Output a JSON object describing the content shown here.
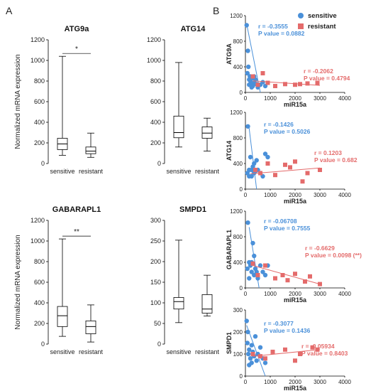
{
  "panels": {
    "a": "A",
    "b": "B"
  },
  "colors": {
    "sensitive": "#4a90d9",
    "resistant": "#e46b6b",
    "box": "#000000"
  },
  "box_ylabel": "Normalized mRNA expression",
  "scatter_xlabel": "miR15a",
  "legend": [
    {
      "label": "sensitive",
      "color": "#4a90d9",
      "marker": "circle"
    },
    {
      "label": "resistant",
      "color": "#e46b6b",
      "marker": "square"
    }
  ],
  "chart_data": [
    {
      "type": "box",
      "title": "ATG9a",
      "ylabel": "Normalized mRNA expression",
      "categories": [
        "sensitive",
        "resistant"
      ],
      "ylim": [
        0,
        1200
      ],
      "yticks": [
        0,
        200,
        400,
        600,
        800,
        1000,
        1200
      ],
      "boxes": [
        {
          "min": 80,
          "q1": 135,
          "median": 190,
          "q3": 245,
          "max": 1040
        },
        {
          "min": 60,
          "q1": 95,
          "median": 120,
          "q3": 160,
          "max": 295
        }
      ],
      "annotation": "*"
    },
    {
      "type": "box",
      "title": "ATG14",
      "ylabel": "",
      "categories": [
        "sensitive",
        "resistant"
      ],
      "ylim": [
        0,
        1200
      ],
      "yticks": [
        0,
        200,
        400,
        600,
        800,
        1000,
        1200
      ],
      "boxes": [
        {
          "min": 160,
          "q1": 250,
          "median": 300,
          "q3": 460,
          "max": 980
        },
        {
          "min": 120,
          "q1": 245,
          "median": 295,
          "q3": 355,
          "max": 440
        }
      ],
      "annotation": ""
    },
    {
      "type": "box",
      "title": "GABARAPL1",
      "ylabel": "Normalized mRNA expression",
      "categories": [
        "sensitive",
        "resistant"
      ],
      "ylim": [
        0,
        1200
      ],
      "yticks": [
        0,
        200,
        400,
        600,
        800,
        1000,
        1200
      ],
      "boxes": [
        {
          "min": 75,
          "q1": 170,
          "median": 275,
          "q3": 365,
          "max": 1020
        },
        {
          "min": 20,
          "q1": 100,
          "median": 170,
          "q3": 225,
          "max": 380
        }
      ],
      "annotation": "**"
    },
    {
      "type": "box",
      "title": "SMPD1",
      "ylabel": "",
      "categories": [
        "sensitive",
        "resistant"
      ],
      "ylim": [
        0,
        300
      ],
      "yticks": [
        0,
        50,
        100,
        150,
        200,
        250,
        300
      ],
      "boxes": [
        {
          "min": 52,
          "q1": 85,
          "median": 103,
          "q3": 113,
          "max": 252
        },
        {
          "min": 68,
          "q1": 75,
          "median": 85,
          "q3": 120,
          "max": 167
        }
      ],
      "annotation": ""
    },
    {
      "type": "scatter",
      "ylabel": "ATG9A",
      "xlabel": "miR15a",
      "xlim": [
        0,
        4000
      ],
      "ylim": [
        0,
        1200
      ],
      "xticks": [
        0,
        1000,
        2000,
        3000,
        4000
      ],
      "yticks": [
        0,
        400,
        800,
        1200
      ],
      "series": [
        {
          "name": "sensitive",
          "x": [
            50,
            80,
            100,
            120,
            150,
            180,
            200,
            230,
            260,
            300,
            350,
            400,
            450,
            500,
            600,
            700,
            800,
            150,
            250,
            350
          ],
          "y": [
            1050,
            300,
            650,
            400,
            200,
            250,
            180,
            120,
            220,
            100,
            150,
            200,
            130,
            80,
            120,
            160,
            100,
            120,
            80,
            250
          ],
          "stat_r": "r = -0.3555",
          "stat_p": "P value = 0.0882",
          "fit": [
            [
              60,
              1050
            ],
            [
              600,
              0
            ]
          ]
        },
        {
          "name": "resistant",
          "x": [
            300,
            500,
            700,
            900,
            1200,
            1600,
            2000,
            2200,
            2500,
            2900
          ],
          "y": [
            250,
            120,
            300,
            150,
            100,
            130,
            120,
            130,
            140,
            150
          ],
          "stat_r": "r = -0.2062",
          "stat_p": "P value = 0.4794",
          "fit": [
            [
              300,
              180
            ],
            [
              3000,
              110
            ]
          ]
        }
      ]
    },
    {
      "type": "scatter",
      "ylabel": "ATG14",
      "xlabel": "miR15a",
      "xlim": [
        0,
        4000
      ],
      "ylim": [
        0,
        1200
      ],
      "xticks": [
        0,
        1000,
        2000,
        3000,
        4000
      ],
      "yticks": [
        0,
        400,
        800,
        1200
      ],
      "series": [
        {
          "name": "sensitive",
          "x": [
            80,
            100,
            150,
            200,
            250,
            300,
            350,
            400,
            450,
            500,
            600,
            700,
            800,
            900,
            150,
            250,
            350
          ],
          "y": [
            250,
            980,
            300,
            500,
            200,
            350,
            400,
            280,
            450,
            300,
            250,
            200,
            550,
            500,
            200,
            300,
            250
          ],
          "stat_r": "r = -0.1426",
          "stat_p": "P value = 0.5026",
          "fit": [
            [
              150,
              950
            ],
            [
              450,
              0
            ]
          ]
        },
        {
          "name": "resistant",
          "x": [
            400,
            600,
            900,
            1200,
            1600,
            1800,
            2000,
            2300,
            2500,
            3000
          ],
          "y": [
            300,
            250,
            400,
            220,
            380,
            340,
            430,
            120,
            250,
            300
          ],
          "stat_r": "r = 0.1203",
          "stat_p": "P value = 0.682",
          "fit": [
            [
              200,
              240
            ],
            [
              3000,
              330
            ]
          ]
        }
      ]
    },
    {
      "type": "scatter",
      "ylabel": "GABARAPL1",
      "xlabel": "miR15a",
      "xlim": [
        0,
        4000
      ],
      "ylim": [
        0,
        1200
      ],
      "xticks": [
        0,
        1000,
        2000,
        3000,
        4000
      ],
      "yticks": [
        0,
        400,
        800,
        1200
      ],
      "series": [
        {
          "name": "sensitive",
          "x": [
            80,
            100,
            150,
            200,
            250,
            300,
            350,
            400,
            450,
            500,
            600,
            700,
            800,
            900,
            150,
            250,
            350
          ],
          "y": [
            300,
            1020,
            400,
            350,
            250,
            700,
            200,
            300,
            250,
            150,
            350,
            250,
            200,
            350,
            150,
            400,
            500
          ],
          "stat_r": "r = -0.06708",
          "stat_p": "P value = 0.7555",
          "fit": [
            [
              150,
              950
            ],
            [
              550,
              0
            ]
          ]
        },
        {
          "name": "resistant",
          "x": [
            300,
            500,
            800,
            1200,
            1500,
            1700,
            2000,
            2400,
            2600,
            3000
          ],
          "y": [
            380,
            200,
            350,
            150,
            200,
            120,
            220,
            100,
            180,
            60
          ],
          "stat_r": "r = -0.6629",
          "stat_p": "P value = 0.0098 (**)",
          "fit": [
            [
              300,
              350
            ],
            [
              3000,
              60
            ]
          ]
        }
      ]
    },
    {
      "type": "scatter",
      "ylabel": "SMPD1",
      "xlabel": "miR15a",
      "xlim": [
        0,
        4000
      ],
      "ylim": [
        0,
        300
      ],
      "xticks": [
        0,
        1000,
        2000,
        3000,
        4000
      ],
      "yticks": [
        0,
        100,
        200,
        300
      ],
      "series": [
        {
          "name": "sensitive",
          "x": [
            50,
            80,
            100,
            120,
            150,
            200,
            250,
            300,
            350,
            400,
            450,
            500,
            600,
            700,
            800,
            150,
            250
          ],
          "y": [
            250,
            150,
            200,
            100,
            120,
            80,
            60,
            110,
            90,
            180,
            70,
            100,
            130,
            80,
            60,
            50,
            140
          ],
          "stat_r": "r = -0.3077",
          "stat_p": "P value = 0.1436",
          "fit": [
            [
              50,
              230
            ],
            [
              800,
              0
            ]
          ]
        },
        {
          "name": "resistant",
          "x": [
            300,
            600,
            800,
            1100,
            1600,
            2000,
            2200,
            2700,
            2900
          ],
          "y": [
            100,
            90,
            80,
            110,
            120,
            70,
            100,
            130,
            120
          ],
          "stat_r": "r = -0.05934",
          "stat_p": "P value = 0.8403",
          "fit": [
            [
              300,
              90
            ],
            [
              3000,
              120
            ]
          ]
        }
      ]
    }
  ]
}
